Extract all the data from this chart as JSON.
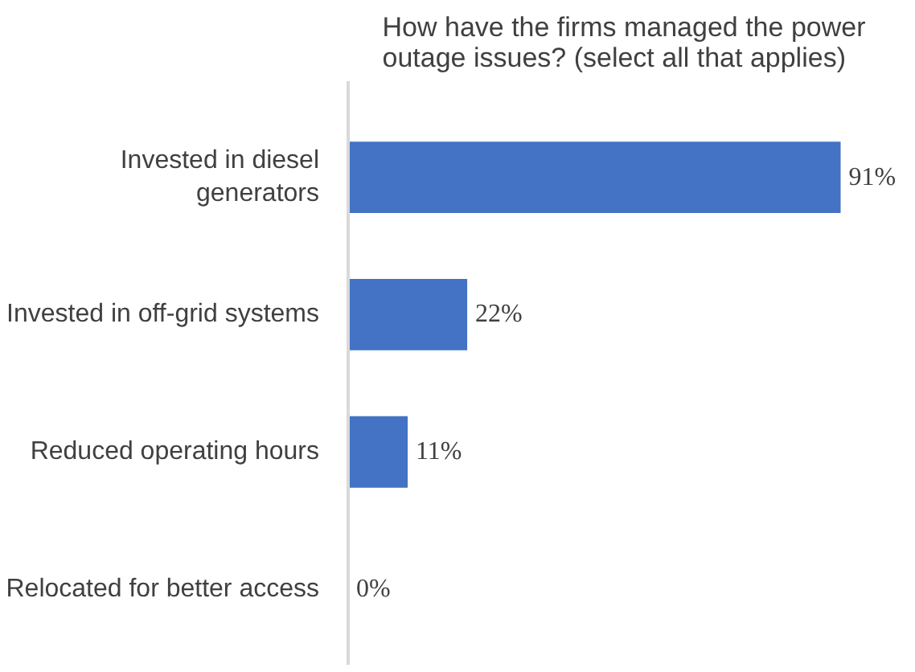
{
  "chart_data": {
    "type": "bar",
    "orientation": "horizontal",
    "title": "How have the firms managed the power\noutage issues? (select all that applies)",
    "categories": [
      "Invested in diesel\ngenerators",
      "Invested in off-grid systems",
      "Reduced operating hours",
      "Relocated for better access"
    ],
    "values": [
      91,
      22,
      11,
      0
    ],
    "value_labels": [
      "91%",
      "22%",
      "11%",
      "0%"
    ],
    "color": "#4472c4",
    "grid": false
  }
}
